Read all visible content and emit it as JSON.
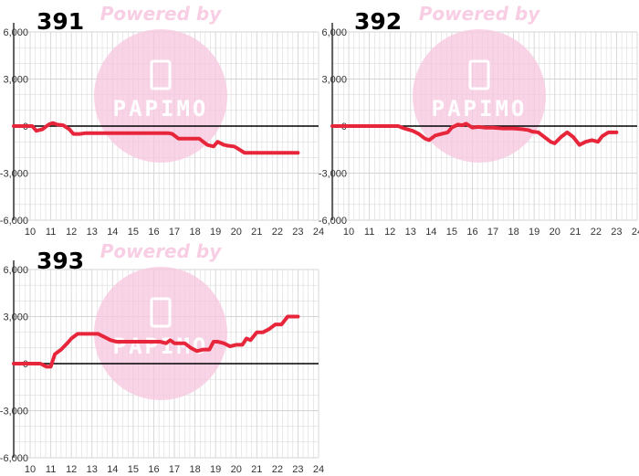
{
  "watermark": {
    "text": "Powered by",
    "brand": "PAPIMO"
  },
  "colors": {
    "series": "#e8263b",
    "grid": "#d4d4d4",
    "axis": "#000000",
    "watermark": "#f7c6e0"
  },
  "chart_data": [
    {
      "type": "line",
      "title": "391",
      "xlabel": "",
      "ylabel": "",
      "xlim": [
        9.2,
        24
      ],
      "ylim": [
        -6000,
        6000
      ],
      "x_ticks": [
        "10",
        "11",
        "12",
        "13",
        "14",
        "15",
        "16",
        "17",
        "18",
        "19",
        "20",
        "21",
        "22",
        "23",
        "24"
      ],
      "y_ticks": [
        "6,000",
        "3,000",
        "0",
        "-3,000",
        "-6,000"
      ],
      "grid": true,
      "series": [
        {
          "x": [
            9.2,
            10.1,
            10.3,
            10.6,
            10.9,
            11.1,
            11.3,
            11.6,
            11.9,
            12.1,
            12.4,
            12.7,
            13.0,
            14.0,
            15.0,
            16.0,
            16.7,
            16.9,
            17.2,
            17.9,
            18.2,
            18.6,
            18.9,
            19.1,
            19.4,
            19.6,
            19.9,
            20.1,
            20.4,
            20.9,
            21.5,
            22.0,
            22.5,
            23.0
          ],
          "y": [
            0,
            0,
            -300,
            -200,
            100,
            200,
            100,
            50,
            -200,
            -500,
            -500,
            -450,
            -450,
            -450,
            -450,
            -450,
            -450,
            -500,
            -800,
            -800,
            -800,
            -1200,
            -1300,
            -1000,
            -1200,
            -1250,
            -1300,
            -1450,
            -1700,
            -1700,
            -1700,
            -1700,
            -1700,
            -1700
          ]
        }
      ]
    },
    {
      "type": "line",
      "title": "392",
      "xlabel": "",
      "ylabel": "",
      "xlim": [
        9.2,
        24
      ],
      "ylim": [
        -6000,
        6000
      ],
      "x_ticks": [
        "10",
        "11",
        "12",
        "13",
        "14",
        "15",
        "16",
        "17",
        "18",
        "19",
        "20",
        "21",
        "22",
        "23",
        "24"
      ],
      "y_ticks": [
        "6,000",
        "3,000",
        "0",
        "-3,000",
        "-6,000"
      ],
      "grid": true,
      "series": [
        {
          "x": [
            9.2,
            10.0,
            11.0,
            12.0,
            12.4,
            12.7,
            13.1,
            13.4,
            13.7,
            13.9,
            14.2,
            14.5,
            14.8,
            15.0,
            15.3,
            15.5,
            15.7,
            16.0,
            16.3,
            16.6,
            17.0,
            17.5,
            18.0,
            18.4,
            18.7,
            18.9,
            19.2,
            19.5,
            19.8,
            20.0,
            20.3,
            20.6,
            20.9,
            21.2,
            21.5,
            21.8,
            22.1,
            22.3,
            22.6,
            23.0
          ],
          "y": [
            0,
            0,
            0,
            0,
            0,
            -150,
            -300,
            -500,
            -800,
            -900,
            -600,
            -500,
            -400,
            -100,
            100,
            50,
            150,
            -100,
            -50,
            -100,
            -100,
            -150,
            -150,
            -200,
            -250,
            -350,
            -400,
            -700,
            -1000,
            -1100,
            -700,
            -400,
            -700,
            -1200,
            -1000,
            -900,
            -1000,
            -650,
            -400,
            -400
          ]
        }
      ]
    },
    {
      "type": "line",
      "title": "393",
      "xlabel": "",
      "ylabel": "",
      "xlim": [
        9.2,
        24
      ],
      "ylim": [
        -6000,
        6000
      ],
      "x_ticks": [
        "10",
        "11",
        "12",
        "13",
        "14",
        "15",
        "16",
        "17",
        "18",
        "19",
        "20",
        "21",
        "22",
        "23",
        "24"
      ],
      "y_ticks": [
        "6,000",
        "3,000",
        "0",
        "-3,000",
        "-6,000"
      ],
      "grid": true,
      "series": [
        {
          "x": [
            9.2,
            10.0,
            10.5,
            10.8,
            11.0,
            11.2,
            11.5,
            11.8,
            12.0,
            12.3,
            12.5,
            13.0,
            13.3,
            13.6,
            13.9,
            14.2,
            14.5,
            15.0,
            15.5,
            16.0,
            16.3,
            16.6,
            16.8,
            17.0,
            17.5,
            17.8,
            18.1,
            18.4,
            18.7,
            18.9,
            19.1,
            19.4,
            19.7,
            20.0,
            20.3,
            20.5,
            20.7,
            21.0,
            21.3,
            21.6,
            21.9,
            22.2,
            22.5,
            23.0
          ],
          "y": [
            0,
            0,
            0,
            -200,
            -200,
            600,
            900,
            1300,
            1600,
            1900,
            1900,
            1900,
            1900,
            1700,
            1500,
            1400,
            1400,
            1400,
            1400,
            1400,
            1400,
            1300,
            1500,
            1300,
            1300,
            1000,
            800,
            900,
            900,
            1400,
            1400,
            1300,
            1100,
            1200,
            1200,
            1600,
            1500,
            2000,
            2000,
            2200,
            2500,
            2500,
            3000,
            3000
          ]
        }
      ]
    }
  ]
}
